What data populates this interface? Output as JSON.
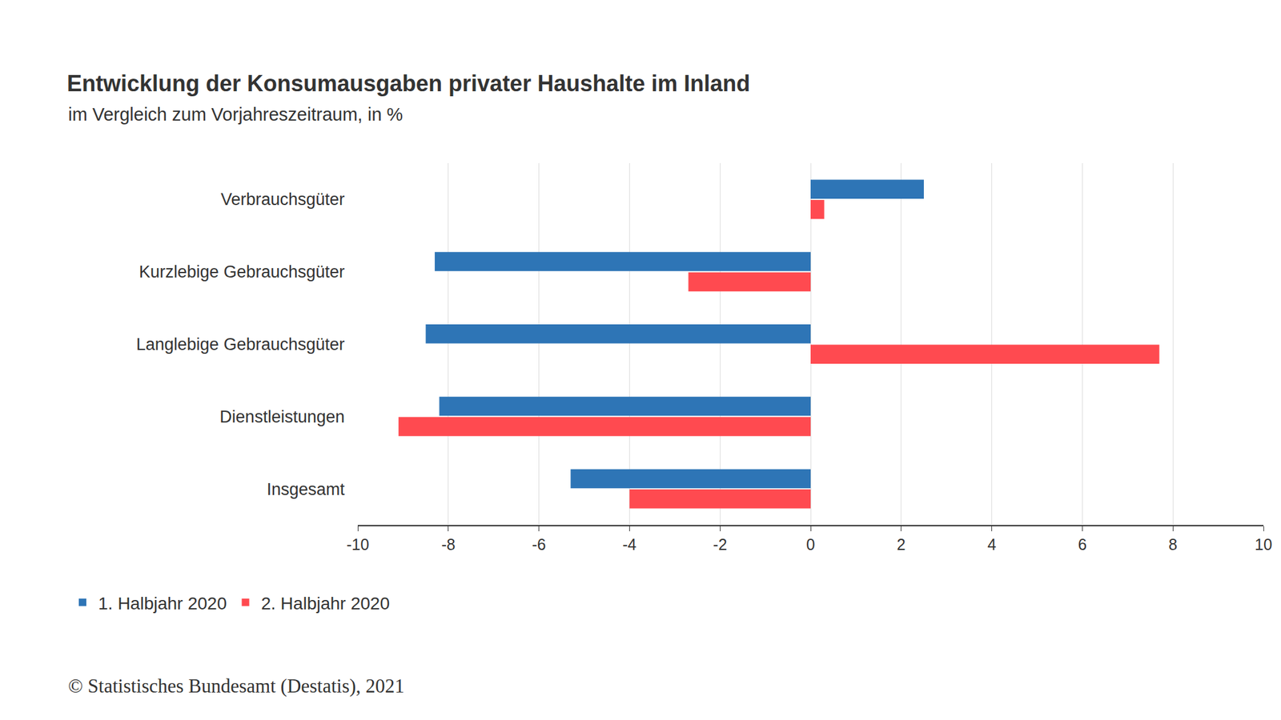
{
  "chart_data": {
    "type": "bar",
    "orientation": "horizontal",
    "title": "Entwicklung der Konsumausgaben privater Haushalte im Inland",
    "subtitle": "im Vergleich zum Vorjahreszeitraum, in %",
    "source": "© Statistisches Bundesamt (Destatis), 2021",
    "categories": [
      "Verbrauchsgüter",
      "Kurzlebige Gebrauchsgüter",
      "Langlebige Gebrauchsgüter",
      "Dienstleistungen",
      "Insgesamt"
    ],
    "series": [
      {
        "name": "1. Halbjahr 2020",
        "color": "#2e75b6",
        "values": [
          2.5,
          -8.3,
          -8.5,
          -8.2,
          -5.3
        ]
      },
      {
        "name": "2. Halbjahr 2020",
        "color": "#ff4a50",
        "values": [
          0.3,
          -2.7,
          7.7,
          -9.1,
          -4.0
        ]
      }
    ],
    "xlim": [
      -10,
      10
    ],
    "xticks": [
      -10,
      -8,
      -6,
      -4,
      -2,
      0,
      2,
      4,
      6,
      8,
      10
    ],
    "grid": true,
    "legend": "bottom-left"
  }
}
